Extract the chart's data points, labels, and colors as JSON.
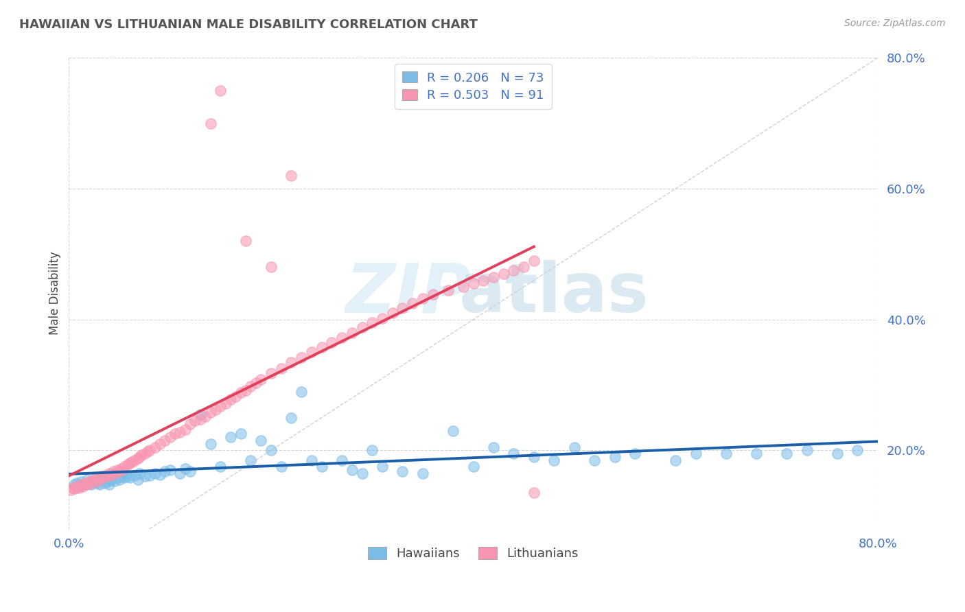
{
  "title": "HAWAIIAN VS LITHUANIAN MALE DISABILITY CORRELATION CHART",
  "source": "Source: ZipAtlas.com",
  "ylabel": "Male Disability",
  "xmin": 0.0,
  "xmax": 0.8,
  "ymin": 0.08,
  "ymax": 0.8,
  "R_hawaiian": 0.206,
  "N_hawaiian": 73,
  "R_lithuanian": 0.503,
  "N_lithuanian": 91,
  "color_hawaiian": "#7bbde8",
  "color_hawaiian_line": "#1a5fa8",
  "color_lithuanian": "#f895b0",
  "color_lithuanian_line": "#e0405a",
  "background_color": "#ffffff",
  "grid_color": "#cccccc",
  "title_color": "#555555",
  "tick_color": "#4472c4",
  "watermark_zip_color": "#d0e8f5",
  "watermark_atlas_color": "#b8d5e8",
  "hawaiian_x": [
    0.005,
    0.008,
    0.01,
    0.012,
    0.015,
    0.018,
    0.02,
    0.022,
    0.025,
    0.028,
    0.03,
    0.032,
    0.035,
    0.038,
    0.04,
    0.042,
    0.045,
    0.048,
    0.05,
    0.052,
    0.055,
    0.058,
    0.06,
    0.065,
    0.068,
    0.07,
    0.075,
    0.08,
    0.085,
    0.09,
    0.095,
    0.1,
    0.11,
    0.115,
    0.12,
    0.13,
    0.14,
    0.15,
    0.16,
    0.17,
    0.18,
    0.19,
    0.2,
    0.21,
    0.22,
    0.23,
    0.24,
    0.25,
    0.27,
    0.28,
    0.29,
    0.3,
    0.31,
    0.33,
    0.35,
    0.38,
    0.4,
    0.42,
    0.44,
    0.46,
    0.48,
    0.5,
    0.52,
    0.54,
    0.56,
    0.6,
    0.62,
    0.65,
    0.68,
    0.71,
    0.73,
    0.76,
    0.78
  ],
  "hawaiian_y": [
    0.148,
    0.15,
    0.145,
    0.152,
    0.148,
    0.155,
    0.15,
    0.148,
    0.152,
    0.15,
    0.148,
    0.155,
    0.15,
    0.152,
    0.148,
    0.155,
    0.153,
    0.158,
    0.155,
    0.16,
    0.158,
    0.16,
    0.158,
    0.162,
    0.155,
    0.165,
    0.16,
    0.162,
    0.165,
    0.163,
    0.168,
    0.17,
    0.165,
    0.172,
    0.168,
    0.255,
    0.21,
    0.175,
    0.22,
    0.225,
    0.185,
    0.215,
    0.2,
    0.175,
    0.25,
    0.29,
    0.185,
    0.175,
    0.185,
    0.17,
    0.165,
    0.2,
    0.175,
    0.168,
    0.165,
    0.23,
    0.175,
    0.205,
    0.195,
    0.19,
    0.185,
    0.205,
    0.185,
    0.19,
    0.195,
    0.185,
    0.195,
    0.195,
    0.195,
    0.195,
    0.2,
    0.195,
    0.2
  ],
  "lithuanian_x": [
    0.002,
    0.004,
    0.006,
    0.008,
    0.01,
    0.012,
    0.014,
    0.016,
    0.018,
    0.02,
    0.022,
    0.024,
    0.026,
    0.028,
    0.03,
    0.032,
    0.034,
    0.036,
    0.038,
    0.04,
    0.042,
    0.044,
    0.046,
    0.048,
    0.05,
    0.052,
    0.055,
    0.058,
    0.06,
    0.062,
    0.065,
    0.068,
    0.07,
    0.072,
    0.075,
    0.078,
    0.08,
    0.085,
    0.09,
    0.095,
    0.1,
    0.105,
    0.11,
    0.115,
    0.12,
    0.125,
    0.13,
    0.135,
    0.14,
    0.145,
    0.15,
    0.155,
    0.16,
    0.165,
    0.17,
    0.175,
    0.18,
    0.185,
    0.19,
    0.2,
    0.21,
    0.22,
    0.23,
    0.24,
    0.25,
    0.26,
    0.27,
    0.28,
    0.29,
    0.3,
    0.31,
    0.32,
    0.33,
    0.34,
    0.35,
    0.36,
    0.375,
    0.39,
    0.4,
    0.41,
    0.42,
    0.43,
    0.44,
    0.45,
    0.46,
    0.175,
    0.2,
    0.22,
    0.14,
    0.46,
    0.15
  ],
  "lithuanian_y": [
    0.14,
    0.143,
    0.142,
    0.145,
    0.143,
    0.148,
    0.145,
    0.15,
    0.148,
    0.152,
    0.15,
    0.155,
    0.152,
    0.158,
    0.155,
    0.16,
    0.158,
    0.162,
    0.16,
    0.165,
    0.163,
    0.168,
    0.165,
    0.17,
    0.168,
    0.172,
    0.175,
    0.178,
    0.18,
    0.183,
    0.185,
    0.188,
    0.19,
    0.193,
    0.195,
    0.198,
    0.2,
    0.205,
    0.21,
    0.215,
    0.22,
    0.225,
    0.228,
    0.232,
    0.24,
    0.245,
    0.248,
    0.252,
    0.258,
    0.262,
    0.268,
    0.272,
    0.278,
    0.282,
    0.288,
    0.292,
    0.298,
    0.303,
    0.308,
    0.318,
    0.325,
    0.335,
    0.342,
    0.35,
    0.358,
    0.365,
    0.372,
    0.38,
    0.388,
    0.395,
    0.402,
    0.41,
    0.418,
    0.425,
    0.432,
    0.438,
    0.445,
    0.45,
    0.455,
    0.46,
    0.465,
    0.47,
    0.475,
    0.48,
    0.49,
    0.52,
    0.48,
    0.62,
    0.7,
    0.135,
    0.75
  ]
}
